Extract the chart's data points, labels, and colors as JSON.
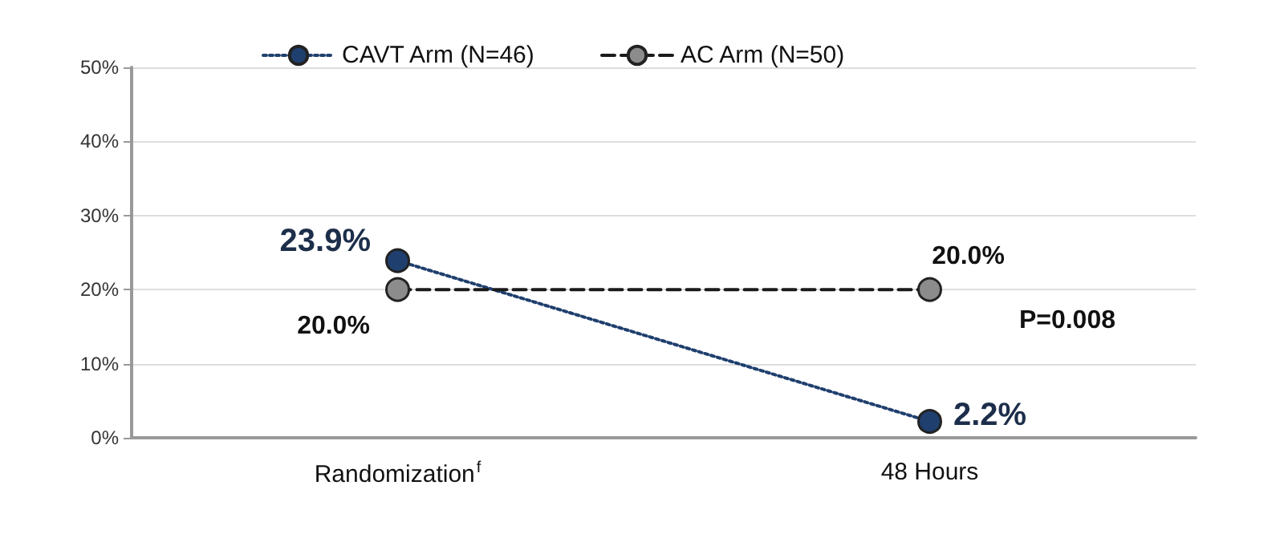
{
  "chart_data": {
    "type": "line",
    "categories": [
      "Randomization$^{f}$",
      "48 Hours"
    ],
    "series": [
      {
        "name": "CAVT Arm (N=46)",
        "color": "#1f3f6e",
        "values": [
          23.9,
          2.2
        ],
        "value_labels": [
          "23.9%",
          "2.2%"
        ],
        "line_style": "dotted"
      },
      {
        "name": "AC Arm (N=50)",
        "color": "#8c8c8c",
        "values": [
          20.0,
          20.0
        ],
        "value_labels": [
          "20.0%",
          "20.0%"
        ],
        "line_style": "dashed"
      }
    ],
    "ylim": [
      0,
      50
    ],
    "yticks": [
      {
        "value": 0,
        "label": "0%"
      },
      {
        "value": 10,
        "label": "10%"
      },
      {
        "value": 20,
        "label": "20%"
      },
      {
        "value": 30,
        "label": "30%"
      },
      {
        "value": 40,
        "label": "40%"
      },
      {
        "value": 50,
        "label": "50%"
      }
    ],
    "grid": "y",
    "legend": "top",
    "marker": "circle",
    "annotations": [
      "P=0.008"
    ]
  }
}
